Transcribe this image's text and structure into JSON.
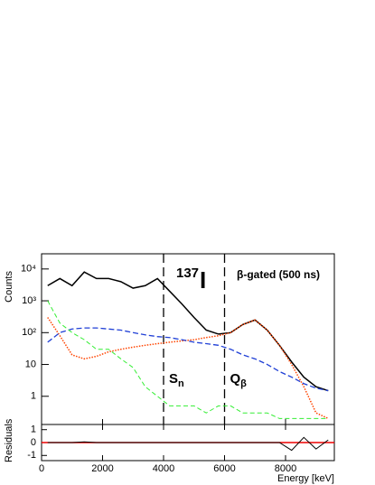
{
  "chart_data": {
    "type": "line",
    "title": "I",
    "title_mass": "137",
    "subtitle": "β-gated (500 ns)",
    "ylabel": "Counts",
    "xlabel": "Energy [keV]",
    "log_y": true,
    "xlim": [
      0,
      9600
    ],
    "ylim": [
      0.13,
      30000
    ],
    "xticks": [
      0,
      2000,
      4000,
      6000,
      8000
    ],
    "yticks": [
      1,
      10,
      {
        "value": 100,
        "label": "10²"
      },
      {
        "value": 1000,
        "label": "10³"
      },
      {
        "value": 10000,
        "label": "10⁴"
      }
    ],
    "x": [
      200,
      600,
      1000,
      1400,
      1800,
      2200,
      2600,
      3000,
      3400,
      3800,
      4200,
      4600,
      5000,
      5400,
      5800,
      6200,
      6600,
      7000,
      7400,
      7800,
      8200,
      8600,
      9000,
      9400
    ],
    "series": [
      {
        "color": "#000000",
        "dash": "",
        "width": 1.5,
        "values": [
          3000,
          5000,
          3000,
          8000,
          5000,
          5000,
          4000,
          2500,
          3000,
          5000,
          2000,
          800,
          300,
          120,
          90,
          100,
          180,
          250,
          120,
          40,
          12,
          4,
          2,
          1.5
        ]
      },
      {
        "color": "#ff4400",
        "dash": "1.5,1.5",
        "width": 1.5,
        "values": [
          300,
          80,
          20,
          15,
          18,
          25,
          30,
          35,
          40,
          45,
          50,
          55,
          60,
          70,
          80,
          100,
          180,
          250,
          120,
          40,
          10,
          2,
          0.3,
          0.2
        ]
      },
      {
        "color": "#1f3fd6",
        "dash": "6,3",
        "width": 1.3,
        "values": [
          50,
          100,
          130,
          140,
          140,
          130,
          120,
          100,
          85,
          75,
          70,
          60,
          50,
          45,
          40,
          30,
          20,
          15,
          10,
          6,
          4,
          2.5,
          1.8,
          1.5
        ]
      },
      {
        "color": "#33ee33",
        "dash": "5,3",
        "width": 1,
        "values": [
          1000,
          200,
          100,
          60,
          30,
          30,
          15,
          8,
          2,
          1,
          0.5,
          0.5,
          0.5,
          0.3,
          0.5,
          0.5,
          0.3,
          0.3,
          0.3,
          0.2,
          0.2,
          0.2,
          0.2,
          0.2
        ]
      }
    ],
    "markers": [
      {
        "x": 4000,
        "label": "S",
        "sub": "n"
      },
      {
        "x": 6000,
        "label": "Q",
        "sub": "β"
      }
    ],
    "residuals": {
      "ylabel": "Residuals",
      "ylim": [
        -1.4,
        1.4
      ],
      "yticks": [
        -1,
        0,
        1
      ],
      "values": [
        0,
        0,
        0,
        0.05,
        0,
        0,
        0,
        0,
        0,
        0,
        0,
        0,
        0,
        0,
        0,
        0,
        0,
        0,
        0,
        0,
        -0.6,
        0.4,
        -0.5,
        0.2
      ],
      "color": "#000000",
      "line_color": "#ee0000"
    }
  }
}
